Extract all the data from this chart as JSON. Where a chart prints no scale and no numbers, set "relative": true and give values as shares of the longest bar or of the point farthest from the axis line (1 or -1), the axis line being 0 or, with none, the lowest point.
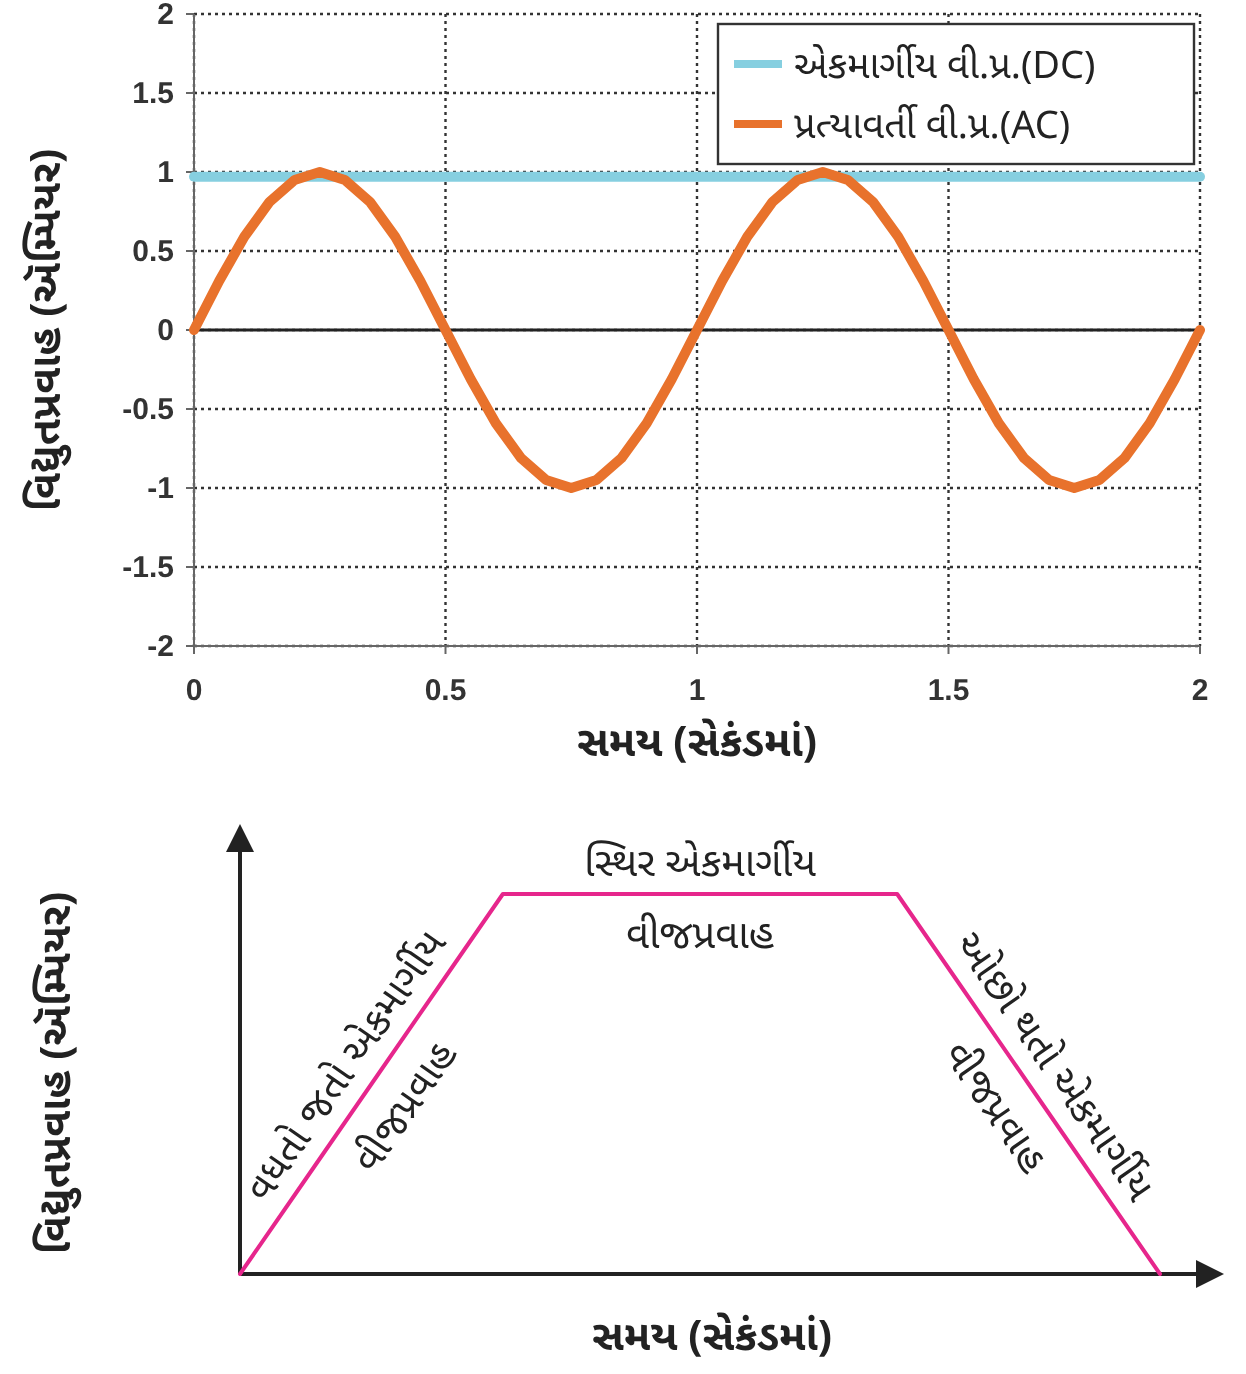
{
  "chart_data": [
    {
      "type": "line",
      "xlabel": "સમય (સેકંડમાં)",
      "ylabel": "વિદ્યુતપ્રવાહ (ઍમ્પિયર)",
      "xlim": [
        0,
        2
      ],
      "ylim": [
        -2,
        2
      ],
      "xticks": [
        0,
        0.5,
        1,
        1.5,
        2
      ],
      "yticks": [
        -2,
        -1.5,
        -1,
        -0.5,
        0,
        0.5,
        1,
        1.5,
        2
      ],
      "grid": true,
      "legend": "top right",
      "line_style": "solid",
      "ref_lines": [
        {
          "axis": "y",
          "value": 0,
          "color": "#222222"
        }
      ],
      "series": [
        {
          "name": "એકમાર્ગીય વી.પ્ર.(DC)",
          "color": "#86cfe0",
          "x": [
            0,
            2
          ],
          "values": [
            0.97,
            0.97
          ]
        },
        {
          "name": "પ્રત્યાવર્તી વી.પ્ર.(AC)",
          "color": "#e8722c",
          "x": [
            0,
            0.05,
            0.1,
            0.15,
            0.2,
            0.25,
            0.3,
            0.35,
            0.4,
            0.45,
            0.5,
            0.55,
            0.6,
            0.65,
            0.7,
            0.75,
            0.8,
            0.85,
            0.9,
            0.95,
            1,
            1.05,
            1.1,
            1.15,
            1.2,
            1.25,
            1.3,
            1.35,
            1.4,
            1.45,
            1.5,
            1.55,
            1.6,
            1.65,
            1.7,
            1.75,
            1.8,
            1.85,
            1.9,
            1.95,
            2
          ],
          "values": [
            0,
            0.31,
            0.59,
            0.81,
            0.95,
            1,
            0.95,
            0.81,
            0.59,
            0.31,
            0,
            -0.31,
            -0.59,
            -0.81,
            -0.95,
            -1,
            -0.95,
            -0.81,
            -0.59,
            -0.31,
            0,
            0.31,
            0.59,
            0.81,
            0.95,
            1,
            0.95,
            0.81,
            0.59,
            0.31,
            0,
            -0.31,
            -0.59,
            -0.81,
            -0.95,
            -1,
            -0.95,
            -0.81,
            -0.59,
            -0.31,
            0
          ]
        }
      ]
    },
    {
      "type": "line",
      "relative": true,
      "xlabel": "સમય (સેકંડમાં)",
      "ylabel": "વિદ્યુતપ્રવાહ (ઍમ્પિયર)",
      "categories": [
        null,
        null,
        null,
        null,
        null,
        null,
        null,
        null,
        null,
        null,
        null,
        null,
        null,
        null,
        null
      ],
      "series": [
        {
          "color": "#e6268c",
          "values": [
            0,
            0.25,
            0.5,
            0.75,
            1,
            1,
            1,
            1,
            1,
            1,
            1,
            0.75,
            0.5,
            0.25,
            0
          ]
        }
      ],
      "annotations": [
        "વધતો જતો એકમાર્ગીય વીજપ્રવાહ",
        "સ્થિર એકમાર્ગીય વીજપ્રવાહ",
        "ઓછો થતો એકમાર્ગીય વીજપ્રવાહ"
      ]
    }
  ]
}
